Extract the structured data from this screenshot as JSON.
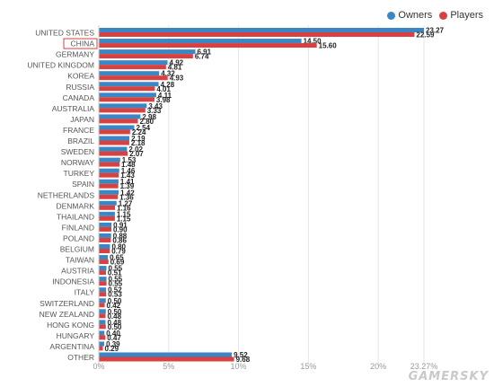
{
  "chart_data": {
    "type": "bar",
    "orientation": "horizontal",
    "categories": [
      "UNITED STATES",
      "CHINA",
      "GERMANY",
      "UNITED KINGDOM",
      "KOREA",
      "RUSSIA",
      "CANADA",
      "AUSTRALIA",
      "JAPAN",
      "FRANCE",
      "BRAZIL",
      "SWEDEN",
      "NORWAY",
      "TURKEY",
      "SPAIN",
      "NETHERLANDS",
      "DENMARK",
      "THAILAND",
      "FINLAND",
      "POLAND",
      "BELGIUM",
      "TAIWAN",
      "AUSTRIA",
      "INDONESIA",
      "ITALY",
      "SWITZERLAND",
      "NEW ZEALAND",
      "HONG KONG",
      "HUNGARY",
      "ARGENTINA",
      "OTHER"
    ],
    "highlighted_category": "CHINA",
    "series": [
      {
        "name": "Owners",
        "color": "#3b86c4",
        "values": [
          23.27,
          14.5,
          6.91,
          4.92,
          4.32,
          4.28,
          4.11,
          3.43,
          2.98,
          2.54,
          2.19,
          2.02,
          1.53,
          1.46,
          1.41,
          1.42,
          1.27,
          1.15,
          0.91,
          0.88,
          0.8,
          0.65,
          0.55,
          0.55,
          0.52,
          0.5,
          0.5,
          0.48,
          0.4,
          0.39,
          9.52
        ],
        "labels": [
          "23.27",
          "14.50",
          "6.91",
          "4.92",
          "4.32",
          "4.28",
          "4.11",
          "3.43",
          "2.98",
          "2.54",
          "2.19",
          "2.02",
          "1.53",
          "1.46",
          "1.41",
          "1.42",
          "1.27",
          "1.15",
          "0.91",
          "0.88",
          "0.80",
          "0.65",
          "0.55",
          "0.55",
          "0.52",
          "0.50",
          "0.50",
          "0.48",
          "0.40",
          "0.39",
          "9.52"
        ]
      },
      {
        "name": "Players",
        "color": "#d9403f",
        "values": [
          22.59,
          15.6,
          6.74,
          4.81,
          4.93,
          4.01,
          3.98,
          3.33,
          2.8,
          2.24,
          2.18,
          2.07,
          1.48,
          1.43,
          1.39,
          1.36,
          1.16,
          1.15,
          0.9,
          0.86,
          0.79,
          0.69,
          0.51,
          0.55,
          0.53,
          0.42,
          0.48,
          0.5,
          0.47,
          0.29,
          9.68
        ],
        "labels": [
          "22.59",
          "15.60",
          "6.74",
          "4.81",
          "4.93",
          "4.01",
          "3.98",
          "3.33",
          "2.80",
          "2.24",
          "2.18",
          "2.07",
          "1.48",
          "1.43",
          "1.39",
          "1.36",
          "1.16",
          "1.15",
          "0.90",
          "0.86",
          "0.79",
          "0.69",
          "0.51",
          "0.55",
          "0.53",
          "0.42",
          "0.48",
          "0.50",
          "0.47",
          "0.29",
          "9.68"
        ]
      }
    ],
    "x_ticks": [
      "0%",
      "5%",
      "10%",
      "15%",
      "20%",
      "23.27%"
    ],
    "x_tick_values": [
      0,
      5,
      10,
      15,
      20,
      23.27
    ],
    "xlim": [
      0,
      23.27
    ],
    "grid": true,
    "legend_position": "top-right"
  },
  "watermark": "GAMERSKY"
}
